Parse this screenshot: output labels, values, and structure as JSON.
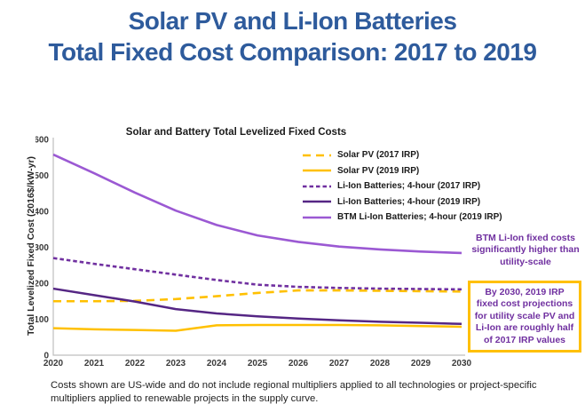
{
  "slide": {
    "title_line1": "Solar PV and Li-Ion Batteries",
    "title_line2": "Total Fixed Cost Comparison: 2017 to 2019",
    "title_color": "#2E5B9C"
  },
  "chart_data": {
    "type": "line",
    "title": "Solar and Battery Total Levelized Fixed Costs",
    "ylabel": "Total Levelized Fixed Cost (2016$/kW-yr)",
    "xlabel": "",
    "ylim": [
      0,
      600
    ],
    "yticks": [
      0,
      100,
      200,
      300,
      400,
      500,
      600
    ],
    "categories": [
      "2020",
      "2021",
      "2022",
      "2023",
      "2024",
      "2025",
      "2026",
      "2027",
      "2028",
      "2029",
      "2030"
    ],
    "grid": false,
    "legend_position": "inside-top-right",
    "axis_color": "#BFBFBF",
    "series": [
      {
        "name": "Solar PV (2017 IRP)",
        "color": "#FFC000",
        "dash": "9,6",
        "width": 2.6,
        "values": [
          150,
          150,
          151,
          156,
          164,
          173,
          180,
          180,
          179,
          178,
          177
        ]
      },
      {
        "name": "Solar PV (2019 IRP)",
        "color": "#FFC000",
        "dash": "",
        "width": 2.5,
        "values": [
          75,
          72,
          70,
          68,
          83,
          84,
          84,
          84,
          83,
          81,
          79
        ]
      },
      {
        "name": "Li-Ion Batteries; 4-hour (2017 IRP)",
        "color": "#7030A0",
        "dash": "4.5,3",
        "width": 2.6,
        "values": [
          270,
          254,
          239,
          224,
          209,
          196,
          190,
          187,
          185,
          184,
          183
        ]
      },
      {
        "name": "Li-Ion Batteries; 4-hour (2019 IRP)",
        "color": "#552684",
        "dash": "",
        "width": 2.5,
        "values": [
          185,
          167,
          149,
          128,
          116,
          108,
          102,
          97,
          93,
          90,
          87
        ]
      },
      {
        "name": "BTM Li-Ion Batteries; 4-hour (2019 IRP)",
        "color": "#9B59D3",
        "dash": "",
        "width": 2.6,
        "values": [
          558,
          506,
          452,
          402,
          362,
          333,
          315,
          302,
          294,
          288,
          284
        ]
      }
    ]
  },
  "annotations": {
    "btm_note": {
      "text": "BTM Li-Ion fixed costs significantly higher than utility-scale",
      "color": "#7030A0"
    },
    "irp_note": {
      "text": "By 2030, 2019 IRP fixed cost projections for utility scale PV and Li-Ion are roughly half of 2017 IRP values",
      "color": "#7030A0",
      "border_color": "#FFC000"
    }
  },
  "footnote": "Costs shown are US-wide and do not include regional multipliers applied to all technologies or project-specific multipliers applied to renewable projects in the supply curve."
}
